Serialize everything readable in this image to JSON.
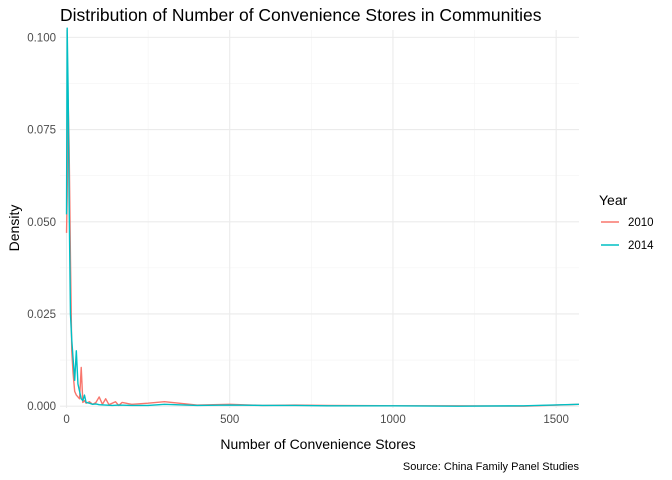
{
  "chart_data": {
    "type": "line",
    "title": "Distribution of Number of Convenience Stores in Communities",
    "xlabel": "Number of Convenience Stores",
    "ylabel": "Density",
    "caption": "Source: China Family Panel Studies",
    "xlim": [
      -20,
      1570
    ],
    "ylim": [
      -0.0005,
      0.102
    ],
    "x_ticks": [
      0,
      500,
      1000,
      1500
    ],
    "x_tick_labels": [
      "0",
      "500",
      "1000",
      "1500"
    ],
    "y_ticks": [
      0,
      0.025,
      0.05,
      0.075,
      0.1
    ],
    "y_tick_labels": [
      "0.000",
      "0.025",
      "0.050",
      "0.075",
      "0.100"
    ],
    "grid": true,
    "legend": {
      "title": "Year",
      "position": "right"
    },
    "series": [
      {
        "name": "2010",
        "color": "#F8766D",
        "x": [
          0,
          2,
          5,
          8,
          12,
          16,
          20,
          25,
          30,
          35,
          40,
          45,
          50,
          55,
          60,
          70,
          80,
          90,
          100,
          110,
          120,
          130,
          150,
          160,
          170,
          200,
          250,
          300,
          400,
          500,
          600,
          700,
          800,
          1000,
          1200,
          1400,
          1570
        ],
        "y": [
          0.047,
          0.057,
          0.083,
          0.07,
          0.04,
          0.015,
          0.009,
          0.004,
          0.003,
          0.0025,
          0.002,
          0.0105,
          0.001,
          0.0015,
          0.0008,
          0.0012,
          0.0005,
          0.001,
          0.0025,
          0.0005,
          0.002,
          0.0004,
          0.0012,
          0.0002,
          0.001,
          0.0005,
          0.0008,
          0.0012,
          0.0003,
          0.0005,
          0.0002,
          0.0003,
          0.0002,
          0.0001,
          0.0001,
          0.0,
          0.0005
        ]
      },
      {
        "name": "2014",
        "color": "#00BFC4",
        "x": [
          0,
          2,
          5,
          8,
          12,
          16,
          20,
          25,
          30,
          35,
          40,
          45,
          50,
          55,
          60,
          70,
          80,
          90,
          100,
          120,
          140,
          160,
          200,
          250,
          300,
          400,
          500,
          600,
          700,
          800,
          1000,
          1200,
          1400,
          1570
        ],
        "y": [
          0.052,
          0.1025,
          0.085,
          0.055,
          0.025,
          0.018,
          0.013,
          0.007,
          0.015,
          0.006,
          0.004,
          0.002,
          0.0015,
          0.003,
          0.001,
          0.0008,
          0.0005,
          0.0006,
          0.0004,
          0.0003,
          0.0002,
          0.0003,
          0.0002,
          0.0002,
          0.0005,
          0.0002,
          0.0003,
          0.0002,
          0.0002,
          0.0001,
          0.0001,
          0.0,
          0.0001,
          0.0005
        ]
      }
    ]
  }
}
